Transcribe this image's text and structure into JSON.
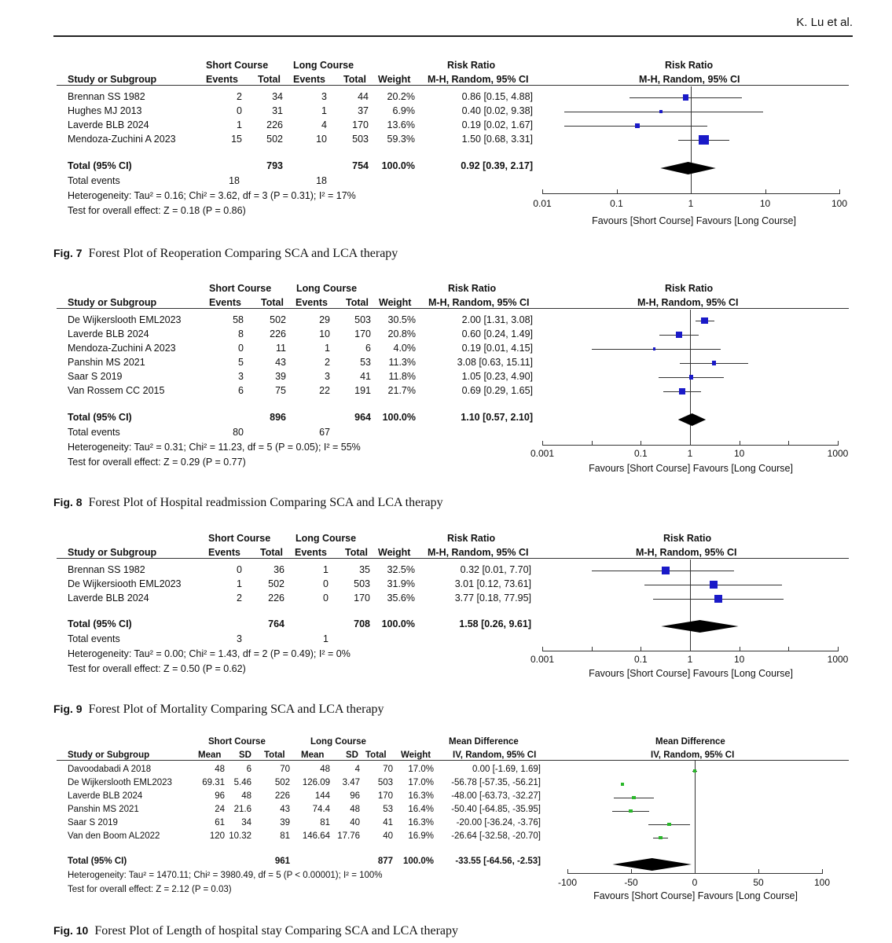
{
  "header": {
    "author": "K. Lu et al."
  },
  "figures": [
    {
      "caption_num": "Fig. 7",
      "caption_text": "Forest Plot of Reoperation Comparing SCA and LCA therapy",
      "group1": "Short Course",
      "group2": "Long Course",
      "effect_title": "Risk Ratio",
      "effect_method": "M-H, Random, 95% CI",
      "col_study": "Study or Subgroup",
      "col_events": "Events",
      "col_total": "Total",
      "col_weight": "Weight",
      "studies": [
        {
          "name": "Brennan SS 1982",
          "e1": "2",
          "n1": "34",
          "e2": "3",
          "n2": "44",
          "w": "20.2%",
          "ci": "0.86 [0.15, 4.88]",
          "est": 0.86,
          "lo": 0.15,
          "hi": 4.88,
          "wt": 20.2
        },
        {
          "name": "Hughes MJ 2013",
          "e1": "0",
          "n1": "31",
          "e2": "1",
          "n2": "37",
          "w": "6.9%",
          "ci": "0.40 [0.02, 9.38]",
          "est": 0.4,
          "lo": 0.02,
          "hi": 9.38,
          "wt": 6.9
        },
        {
          "name": "Laverde BLB 2024",
          "e1": "1",
          "n1": "226",
          "e2": "4",
          "n2": "170",
          "w": "13.6%",
          "ci": "0.19 [0.02, 1.67]",
          "est": 0.19,
          "lo": 0.02,
          "hi": 1.67,
          "wt": 13.6
        },
        {
          "name": "Mendoza-Zuchini A 2023",
          "e1": "15",
          "n1": "502",
          "e2": "10",
          "n2": "503",
          "w": "59.3%",
          "ci": "1.50 [0.68, 3.31]",
          "est": 1.5,
          "lo": 0.68,
          "hi": 3.31,
          "wt": 59.3
        }
      ],
      "total_label": "Total (95% CI)",
      "total_n1": "793",
      "total_n2": "754",
      "total_w": "100.0%",
      "total_ci": "0.92 [0.39, 2.17]",
      "pooled": {
        "est": 0.92,
        "lo": 0.39,
        "hi": 2.17
      },
      "events_label": "Total events",
      "total_e1": "18",
      "total_e2": "18",
      "heterogeneity": "Heterogeneity: Tau² = 0.16; Chi² = 3.62, df = 3 (P = 0.31); I² = 17%",
      "overall": "Test for overall effect: Z = 0.18 (P = 0.86)",
      "axis_ticks": [
        "0.01",
        "0.1",
        "1",
        "10",
        "100"
      ],
      "favours": "Favours [Short Course]  Favours [Long Course]"
    },
    {
      "caption_num": "Fig. 8",
      "caption_text": "Forest Plot of Hospital readmission Comparing SCA and LCA therapy",
      "group1": "Short Course",
      "group2": "Long Course",
      "effect_title": "Risk Ratio",
      "effect_method": "M-H, Random, 95% CI",
      "col_study": "Study or Subgroup",
      "col_events": "Events",
      "col_total": "Total",
      "col_weight": "Weight",
      "studies": [
        {
          "name": "De Wijkerslooth EML2023",
          "e1": "58",
          "n1": "502",
          "e2": "29",
          "n2": "503",
          "w": "30.5%",
          "ci": "2.00 [1.31, 3.08]",
          "est": 2.0,
          "lo": 1.31,
          "hi": 3.08,
          "wt": 30.5
        },
        {
          "name": "Laverde BLB 2024",
          "e1": "8",
          "n1": "226",
          "e2": "10",
          "n2": "170",
          "w": "20.8%",
          "ci": "0.60 [0.24, 1.49]",
          "est": 0.6,
          "lo": 0.24,
          "hi": 1.49,
          "wt": 20.8
        },
        {
          "name": "Mendoza-Zuchini A 2023",
          "e1": "0",
          "n1": "11",
          "e2": "1",
          "n2": "6",
          "w": "4.0%",
          "ci": "0.19 [0.01, 4.15]",
          "est": 0.19,
          "lo": 0.01,
          "hi": 4.15,
          "wt": 4.0
        },
        {
          "name": "Panshin MS 2021",
          "e1": "5",
          "n1": "43",
          "e2": "2",
          "n2": "53",
          "w": "11.3%",
          "ci": "3.08 [0.63, 15.11]",
          "est": 3.08,
          "lo": 0.63,
          "hi": 15.11,
          "wt": 11.3
        },
        {
          "name": "Saar S 2019",
          "e1": "3",
          "n1": "39",
          "e2": "3",
          "n2": "41",
          "w": "11.8%",
          "ci": "1.05 [0.23, 4.90]",
          "est": 1.05,
          "lo": 0.23,
          "hi": 4.9,
          "wt": 11.8
        },
        {
          "name": "Van Rossem CC 2015",
          "e1": "6",
          "n1": "75",
          "e2": "22",
          "n2": "191",
          "w": "21.7%",
          "ci": "0.69 [0.29, 1.65]",
          "est": 0.69,
          "lo": 0.29,
          "hi": 1.65,
          "wt": 21.7
        }
      ],
      "total_label": "Total (95% CI)",
      "total_n1": "896",
      "total_n2": "964",
      "total_w": "100.0%",
      "total_ci": "1.10 [0.57, 2.10]",
      "pooled": {
        "est": 1.1,
        "lo": 0.57,
        "hi": 2.1
      },
      "events_label": "Total events",
      "total_e1": "80",
      "total_e2": "67",
      "heterogeneity": "Heterogeneity: Tau² = 0.31; Chi² = 11.23, df = 5 (P = 0.05); I² = 55%",
      "overall": "Test for overall effect: Z = 0.29 (P = 0.77)",
      "axis_ticks": [
        "0.001",
        "0.1",
        "1",
        "10",
        "1000"
      ],
      "favours": "Favours [Short Course]  Favours [Long Course]"
    },
    {
      "caption_num": "Fig. 9",
      "caption_text": "Forest Plot of Mortality Comparing SCA and LCA therapy",
      "group1": "Short Course",
      "group2": "Long Course",
      "effect_title": "Risk Ratio",
      "effect_method": "M-H, Random, 95% CI",
      "col_study": "Study or Subgroup",
      "col_events": "Events",
      "col_total": "Total",
      "col_weight": "Weight",
      "studies": [
        {
          "name": "Brennan SS 1982",
          "e1": "0",
          "n1": "36",
          "e2": "1",
          "n2": "35",
          "w": "32.5%",
          "ci": "0.32 [0.01, 7.70]",
          "est": 0.32,
          "lo": 0.01,
          "hi": 7.7,
          "wt": 32.5
        },
        {
          "name": "De Wijkersiooth EML2023",
          "e1": "1",
          "n1": "502",
          "e2": "0",
          "n2": "503",
          "w": "31.9%",
          "ci": "3.01 [0.12, 73.61]",
          "est": 3.01,
          "lo": 0.12,
          "hi": 73.61,
          "wt": 31.9
        },
        {
          "name": "Laverde BLB 2024",
          "e1": "2",
          "n1": "226",
          "e2": "0",
          "n2": "170",
          "w": "35.6%",
          "ci": "3.77 [0.18, 77.95]",
          "est": 3.77,
          "lo": 0.18,
          "hi": 77.95,
          "wt": 35.6
        }
      ],
      "total_label": "Total (95% CI)",
      "total_n1": "764",
      "total_n2": "708",
      "total_w": "100.0%",
      "total_ci": "1.58 [0.26, 9.61]",
      "pooled": {
        "est": 1.58,
        "lo": 0.26,
        "hi": 9.61
      },
      "events_label": "Total events",
      "total_e1": "3",
      "total_e2": "1",
      "heterogeneity": "Heterogeneity: Tau² = 0.00; Chi² = 1.43, df = 2 (P = 0.49); I² = 0%",
      "overall": "Test for overall effect: Z = 0.50 (P = 0.62)",
      "axis_ticks": [
        "0.001",
        "0.1",
        "1",
        "10",
        "1000"
      ],
      "favours": "Favours [Short Course]  Favours [Long Course]"
    },
    {
      "caption_num": "Fig. 10",
      "caption_text": "Forest Plot of Length of hospital stay Comparing SCA and LCA therapy",
      "group1": "Short Course",
      "group2": "Long Course",
      "effect_title": "Mean Difference",
      "effect_method": "IV, Random, 95% CI",
      "col_study": "Study or Subgroup",
      "col_mean": "Mean",
      "col_sd": "SD",
      "col_total": "Total",
      "col_weight": "Weight",
      "studies": [
        {
          "name": "Davoodabadi A 2018",
          "m1": "48",
          "sd1": "6",
          "n1": "70",
          "m2": "48",
          "sd2": "4",
          "n2": "70",
          "w": "17.0%",
          "ci": "0.00 [-1.69, 1.69]",
          "est": 0.0,
          "lo": -1.69,
          "hi": 1.69,
          "wt": 17.0
        },
        {
          "name": "De Wijkerslooth EML2023",
          "m1": "69.31",
          "sd1": "5.46",
          "n1": "502",
          "m2": "126.09",
          "sd2": "3.47",
          "n2": "503",
          "w": "17.0%",
          "ci": "-56.78 [-57.35, -56.21]",
          "est": -56.78,
          "lo": -57.35,
          "hi": -56.21,
          "wt": 17.0
        },
        {
          "name": "Laverde BLB 2024",
          "m1": "96",
          "sd1": "48",
          "n1": "226",
          "m2": "144",
          "sd2": "96",
          "n2": "170",
          "w": "16.3%",
          "ci": "-48.00 [-63.73, -32.27]",
          "est": -48.0,
          "lo": -63.73,
          "hi": -32.27,
          "wt": 16.3
        },
        {
          "name": "Panshin MS 2021",
          "m1": "24",
          "sd1": "21.6",
          "n1": "43",
          "m2": "74.4",
          "sd2": "48",
          "n2": "53",
          "w": "16.4%",
          "ci": "-50.40 [-64.85, -35.95]",
          "est": -50.4,
          "lo": -64.85,
          "hi": -35.95,
          "wt": 16.4
        },
        {
          "name": "Saar S 2019",
          "m1": "61",
          "sd1": "34",
          "n1": "39",
          "m2": "81",
          "sd2": "40",
          "n2": "41",
          "w": "16.3%",
          "ci": "-20.00 [-36.24, -3.76]",
          "est": -20.0,
          "lo": -36.24,
          "hi": -3.76,
          "wt": 16.3
        },
        {
          "name": "Van den Boom AL2022",
          "m1": "120",
          "sd1": "10.32",
          "n1": "81",
          "m2": "146.64",
          "sd2": "17.76",
          "n2": "40",
          "w": "16.9%",
          "ci": "-26.64 [-32.58, -20.70]",
          "est": -26.64,
          "lo": -32.58,
          "hi": -20.7,
          "wt": 16.9
        }
      ],
      "total_label": "Total (95% CI)",
      "total_n1": "961",
      "total_n2": "877",
      "total_w": "100.0%",
      "total_ci": "-33.55 [-64.56, -2.53]",
      "pooled": {
        "est": -33.55,
        "lo": -64.56,
        "hi": -2.53
      },
      "heterogeneity": "Heterogeneity: Tau² = 1470.11; Chi² = 3980.49, df = 5 (P < 0.00001); I² = 100%",
      "overall": "Test for overall effect: Z = 2.12 (P = 0.03)",
      "axis_ticks": [
        "-100",
        "-50",
        "0",
        "50",
        "100"
      ],
      "favours": "Favours [Short Course]  Favours [Long Course]"
    }
  ]
}
